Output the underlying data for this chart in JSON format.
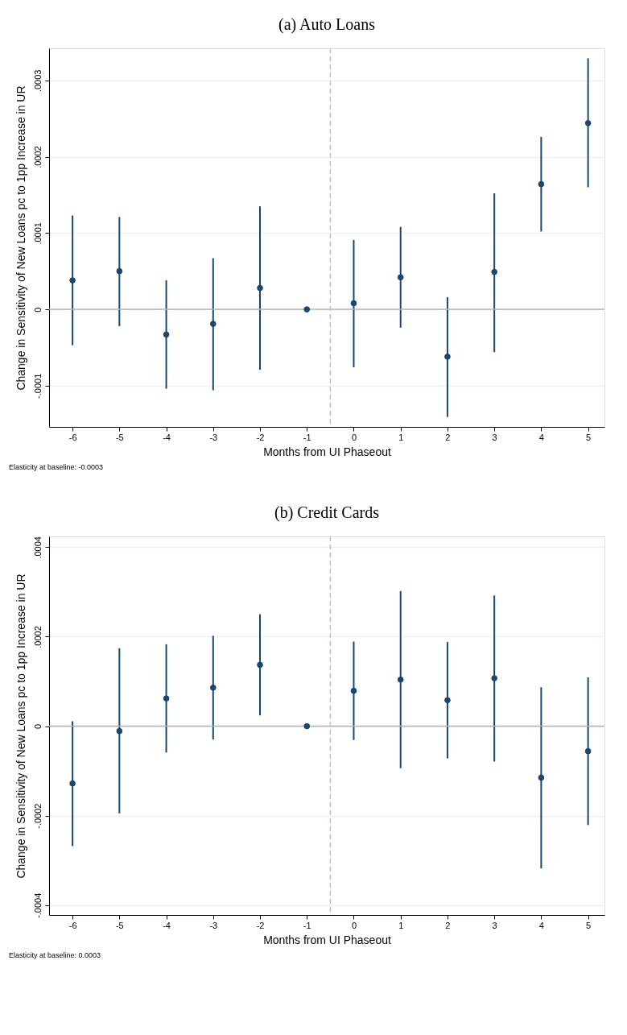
{
  "chart_data": [
    {
      "type": "scatter",
      "title": "(a) Auto Loans",
      "xlabel": "Months from UI Phaseout",
      "ylabel": "Change in Sensitivity of New Loans pc to 1pp Increase in UR",
      "x": [
        -6,
        -5,
        -4,
        -3,
        -2,
        -1,
        0,
        1,
        2,
        3,
        4,
        5
      ],
      "series": [
        {
          "color": "#1a476f",
          "values": [
            3.8e-05,
            5e-05,
            -3.3e-05,
            -1.9e-05,
            2.8e-05,
            0,
            8e-06,
            4.2e-05,
            -6.2e-05,
            4.9e-05,
            0.000164,
            0.000244
          ],
          "errors": [
            [
              -4.7e-05,
              0.000123
            ],
            [
              -2.2e-05,
              0.000121
            ],
            [
              -0.000104,
              3.8e-05
            ],
            [
              -0.000106,
              6.7e-05
            ],
            [
              -7.9e-05,
              0.000135
            ],
            null,
            [
              -7.6e-05,
              9.1e-05
            ],
            [
              -2.4e-05,
              0.000108
            ],
            [
              -0.000141,
              1.6e-05
            ],
            [
              -5.6e-05,
              0.000152
            ],
            [
              0.000102,
              0.000226
            ],
            [
              0.00016,
              0.000329
            ]
          ]
        }
      ],
      "xlim": [
        -6.5,
        5.35
      ],
      "xticks": [
        -6,
        -5,
        -4,
        -3,
        -2,
        -1,
        0,
        1,
        2,
        3,
        4,
        5
      ],
      "ylim": [
        -0.000154,
        0.000342
      ],
      "yticks": [
        {
          "value": -0.0001,
          "label": "-.0001"
        },
        0,
        {
          "value": 0.0001,
          "label": ".0001"
        },
        {
          "value": 0.0002,
          "label": ".0002"
        },
        {
          "value": 0.0003,
          "label": ".0003"
        }
      ],
      "grid": "y",
      "marker": "circle",
      "ref_lines": [
        {
          "axis": "y",
          "value": 0,
          "color": "#b4b4b4",
          "line_style": "solid"
        },
        {
          "axis": "x",
          "value": -0.5,
          "color": "#c0c0c0",
          "line_style": "dashed"
        }
      ],
      "annotations": [
        "Elasticity at baseline: -0.0003"
      ]
    },
    {
      "type": "scatter",
      "title": "(b) Credit Cards",
      "xlabel": "Months from UI Phaseout",
      "ylabel": "Change in Sensitivity of New Loans pc to 1pp Increase in UR",
      "x": [
        -6,
        -5,
        -4,
        -3,
        -2,
        -1,
        0,
        1,
        2,
        3,
        4,
        5
      ],
      "series": [
        {
          "color": "#1a476f",
          "values": [
            -0.000128,
            -1.1e-05,
            6.2e-05,
            8.6e-05,
            0.000137,
            0,
            7.9e-05,
            0.000104,
            5.8e-05,
            0.000107,
            -0.000115,
            -5.6e-05
          ],
          "errors": [
            [
              -0.000268,
              1.1e-05
            ],
            [
              -0.000195,
              0.000174
            ],
            [
              -5.9e-05,
              0.000183
            ],
            [
              -3e-05,
              0.000202
            ],
            [
              2.4e-05,
              0.00025
            ],
            null,
            [
              -3.1e-05,
              0.000189
            ],
            [
              -9.4e-05,
              0.000302
            ],
            [
              -7.2e-05,
              0.000188
            ],
            [
              -7.9e-05,
              0.000292
            ],
            [
              -0.000318,
              8.7e-05
            ],
            [
              -0.000221,
              0.000109
            ]
          ]
        }
      ],
      "xlim": [
        -6.5,
        5.35
      ],
      "xticks": [
        -6,
        -5,
        -4,
        -3,
        -2,
        -1,
        0,
        1,
        2,
        3,
        4,
        5
      ],
      "ylim": [
        -0.000422,
        0.000424
      ],
      "yticks": [
        {
          "value": -0.0004,
          "label": "-.0004"
        },
        {
          "value": -0.0002,
          "label": "-.0002"
        },
        0,
        {
          "value": 0.0002,
          "label": ".0002"
        },
        {
          "value": 0.0004,
          "label": ".0004"
        }
      ],
      "grid": "y",
      "marker": "circle",
      "ref_lines": [
        {
          "axis": "y",
          "value": 0,
          "color": "#b4b4b4",
          "line_style": "solid"
        },
        {
          "axis": "x",
          "value": -0.5,
          "color": "#c0c0c0",
          "line_style": "dashed"
        }
      ],
      "annotations": [
        "Elasticity at baseline: 0.0003"
      ]
    }
  ]
}
